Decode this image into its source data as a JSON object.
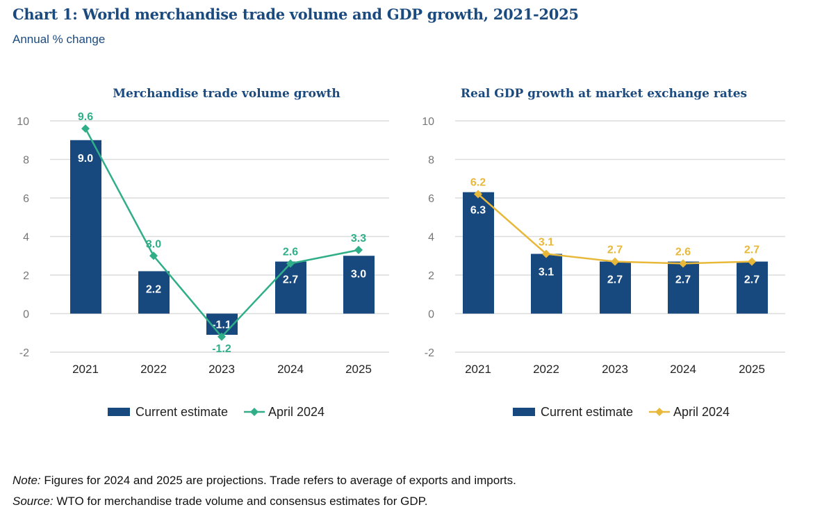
{
  "title": "Chart 1: World merchandise trade volume and GDP growth, 2021-2025",
  "subtitle": "Annual % change",
  "notes": {
    "note_label": "Note:",
    "note_text": " Figures for 2024 and 2025 are projections. Trade refers to average of exports and imports.",
    "source_label": "Source:",
    "source_text": " WTO for merchandise trade volume and consensus estimates for GDP."
  },
  "colors": {
    "bar": "#17497f",
    "line_left": "#2fae88",
    "line_right": "#e8b83a",
    "grid": "#dcdcdc"
  },
  "chart_data": [
    {
      "type": "bar+line",
      "title": "Merchandise trade volume growth",
      "categories": [
        "2021",
        "2022",
        "2023",
        "2024",
        "2025"
      ],
      "ylim": [
        -2,
        10
      ],
      "yticks": [
        "-2",
        "0",
        "2",
        "4",
        "6",
        "8",
        "10"
      ],
      "series": [
        {
          "name": "Current estimate",
          "kind": "bar",
          "values": [
            9.0,
            2.2,
            -1.1,
            2.7,
            3.0
          ],
          "labels": [
            "9.0",
            "2.2",
            "-1.1",
            "2.7",
            "3.0"
          ]
        },
        {
          "name": "April 2024",
          "kind": "line",
          "values": [
            9.6,
            3.0,
            -1.2,
            2.6,
            3.3
          ],
          "labels": [
            "9.6",
            "3.0",
            "-1.2",
            "2.6",
            "3.3"
          ]
        }
      ],
      "legend": "bottom",
      "grid": true
    },
    {
      "type": "bar+line",
      "title": "Real GDP growth at market exchange rates",
      "categories": [
        "2021",
        "2022",
        "2023",
        "2024",
        "2025"
      ],
      "ylim": [
        -2,
        10
      ],
      "yticks": [
        "-2",
        "0",
        "2",
        "4",
        "6",
        "8",
        "10"
      ],
      "series": [
        {
          "name": "Current estimate",
          "kind": "bar",
          "values": [
            6.3,
            3.1,
            2.7,
            2.7,
            2.7
          ],
          "labels": [
            "6.3",
            "3.1",
            "2.7",
            "2.7",
            "2.7"
          ]
        },
        {
          "name": "April 2024",
          "kind": "line",
          "values": [
            6.2,
            3.1,
            2.7,
            2.6,
            2.7
          ],
          "labels": [
            "6.2",
            "3.1",
            "2.7",
            "2.6",
            "2.7"
          ]
        }
      ],
      "legend": "bottom",
      "grid": true
    }
  ]
}
